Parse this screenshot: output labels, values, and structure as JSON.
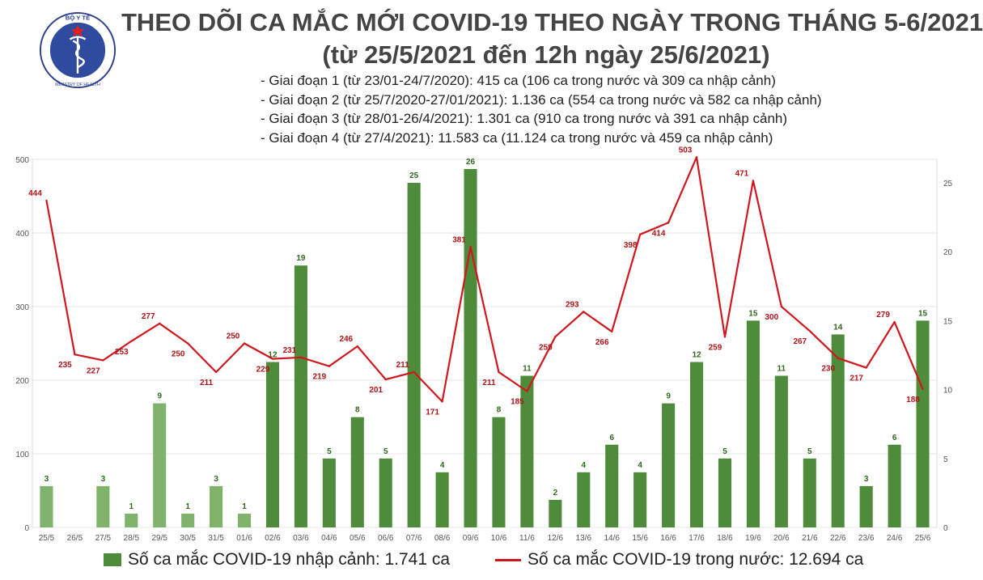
{
  "header": {
    "title_line1": "THEO DÕI CA MẮC MỚI COVID-19 THEO NGÀY TRONG THÁNG 5-6/2021",
    "title_line2": "(từ 25/5/2021 đến 12h ngày 25/6/2021)",
    "phases": [
      "- Giai đoạn 1 (từ 23/01-24/7/2020): 415 ca (106 ca trong nước và 309 ca nhập cảnh)",
      "- Giai đoạn 2 (từ 25/7/2020-27/01/2021): 1.136 ca (554 ca trong nước và 582 ca nhập cảnh)",
      "- Giai đoạn 3 (từ 28/01-26/4/2021): 1.301 ca (910 ca trong nước và 391 ca nhập cảnh)",
      "- Giai đoạn 4 (từ 27/4/2021): 11.583 ca (11.124 ca trong nước và 459 ca nhập cảnh)"
    ]
  },
  "logo": {
    "text_top": "BỘ Y TẾ",
    "text_bottom": "MINISTRY OF HEALTH",
    "icon": "caduceus-icon"
  },
  "colors": {
    "bar": "#4e8b3a",
    "bar_light": "#7fb26a",
    "line": "#d0171e",
    "bar_label": "#2f6a1f",
    "line_label": "#b01418",
    "grid": "#e6e6e6",
    "axis_text": "#555555"
  },
  "chart_data": {
    "type": "bar",
    "categories": [
      "25/5",
      "26/5",
      "27/5",
      "28/5",
      "29/5",
      "30/5",
      "31/5",
      "01/6",
      "02/6",
      "03/6",
      "04/6",
      "05/6",
      "06/6",
      "07/6",
      "08/6",
      "09/6",
      "10/6",
      "11/6",
      "12/6",
      "13/6",
      "14/6",
      "15/6",
      "16/6",
      "17/6",
      "18/6",
      "19/6",
      "20/6",
      "21/6",
      "22/6",
      "23/6",
      "24/6",
      "25/6"
    ],
    "series": [
      {
        "name": "Số ca mắc COVID-19 nhập cảnh: 1.741 ca",
        "type": "bar",
        "axis": "right",
        "values": [
          3,
          0,
          3,
          1,
          9,
          1,
          3,
          1,
          12,
          19,
          5,
          8,
          5,
          25,
          4,
          26,
          8,
          11,
          2,
          4,
          6,
          4,
          9,
          12,
          5,
          15,
          11,
          5,
          14,
          3,
          6,
          15
        ],
        "labels": [
          "3",
          "",
          "3",
          "1",
          "9",
          "1",
          "3",
          "1",
          "12",
          "19",
          "5",
          "8",
          "5",
          "25",
          "4",
          "26",
          "8",
          "11",
          "2",
          "4",
          "6",
          "4",
          "9",
          "12",
          "5",
          "15",
          "11",
          "5",
          "14",
          "3",
          "6",
          "15"
        ]
      },
      {
        "name": "Số ca mắc COVID-19 trong nước: 12.694 ca",
        "type": "line",
        "axis": "left",
        "values": [
          444,
          235,
          227,
          253,
          277,
          250,
          211,
          250,
          229,
          231,
          219,
          246,
          201,
          211,
          171,
          381,
          211,
          185,
          259,
          293,
          266,
          398,
          414,
          503,
          259,
          471,
          300,
          267,
          230,
          217,
          279,
          188
        ],
        "labels": [
          "444",
          "235",
          "227",
          "253",
          "277",
          "250",
          "211",
          "250",
          "229",
          "231",
          "219",
          "246",
          "201",
          "211",
          "171",
          "381",
          "211",
          "185",
          "259",
          "293",
          "266",
          "398",
          "414",
          "503",
          "259",
          "471",
          "300",
          "267",
          "230",
          "217",
          "279",
          "188"
        ]
      }
    ],
    "yleft": {
      "ylim": [
        0,
        500
      ],
      "ticks": [
        "0",
        "100",
        "200",
        "300",
        "400",
        "500"
      ]
    },
    "yright": {
      "ylim": [
        0,
        26.7
      ],
      "ticks": [
        "0",
        "5",
        "10",
        "15",
        "20",
        "25"
      ]
    },
    "grid": true,
    "legend_position": "bottom"
  }
}
